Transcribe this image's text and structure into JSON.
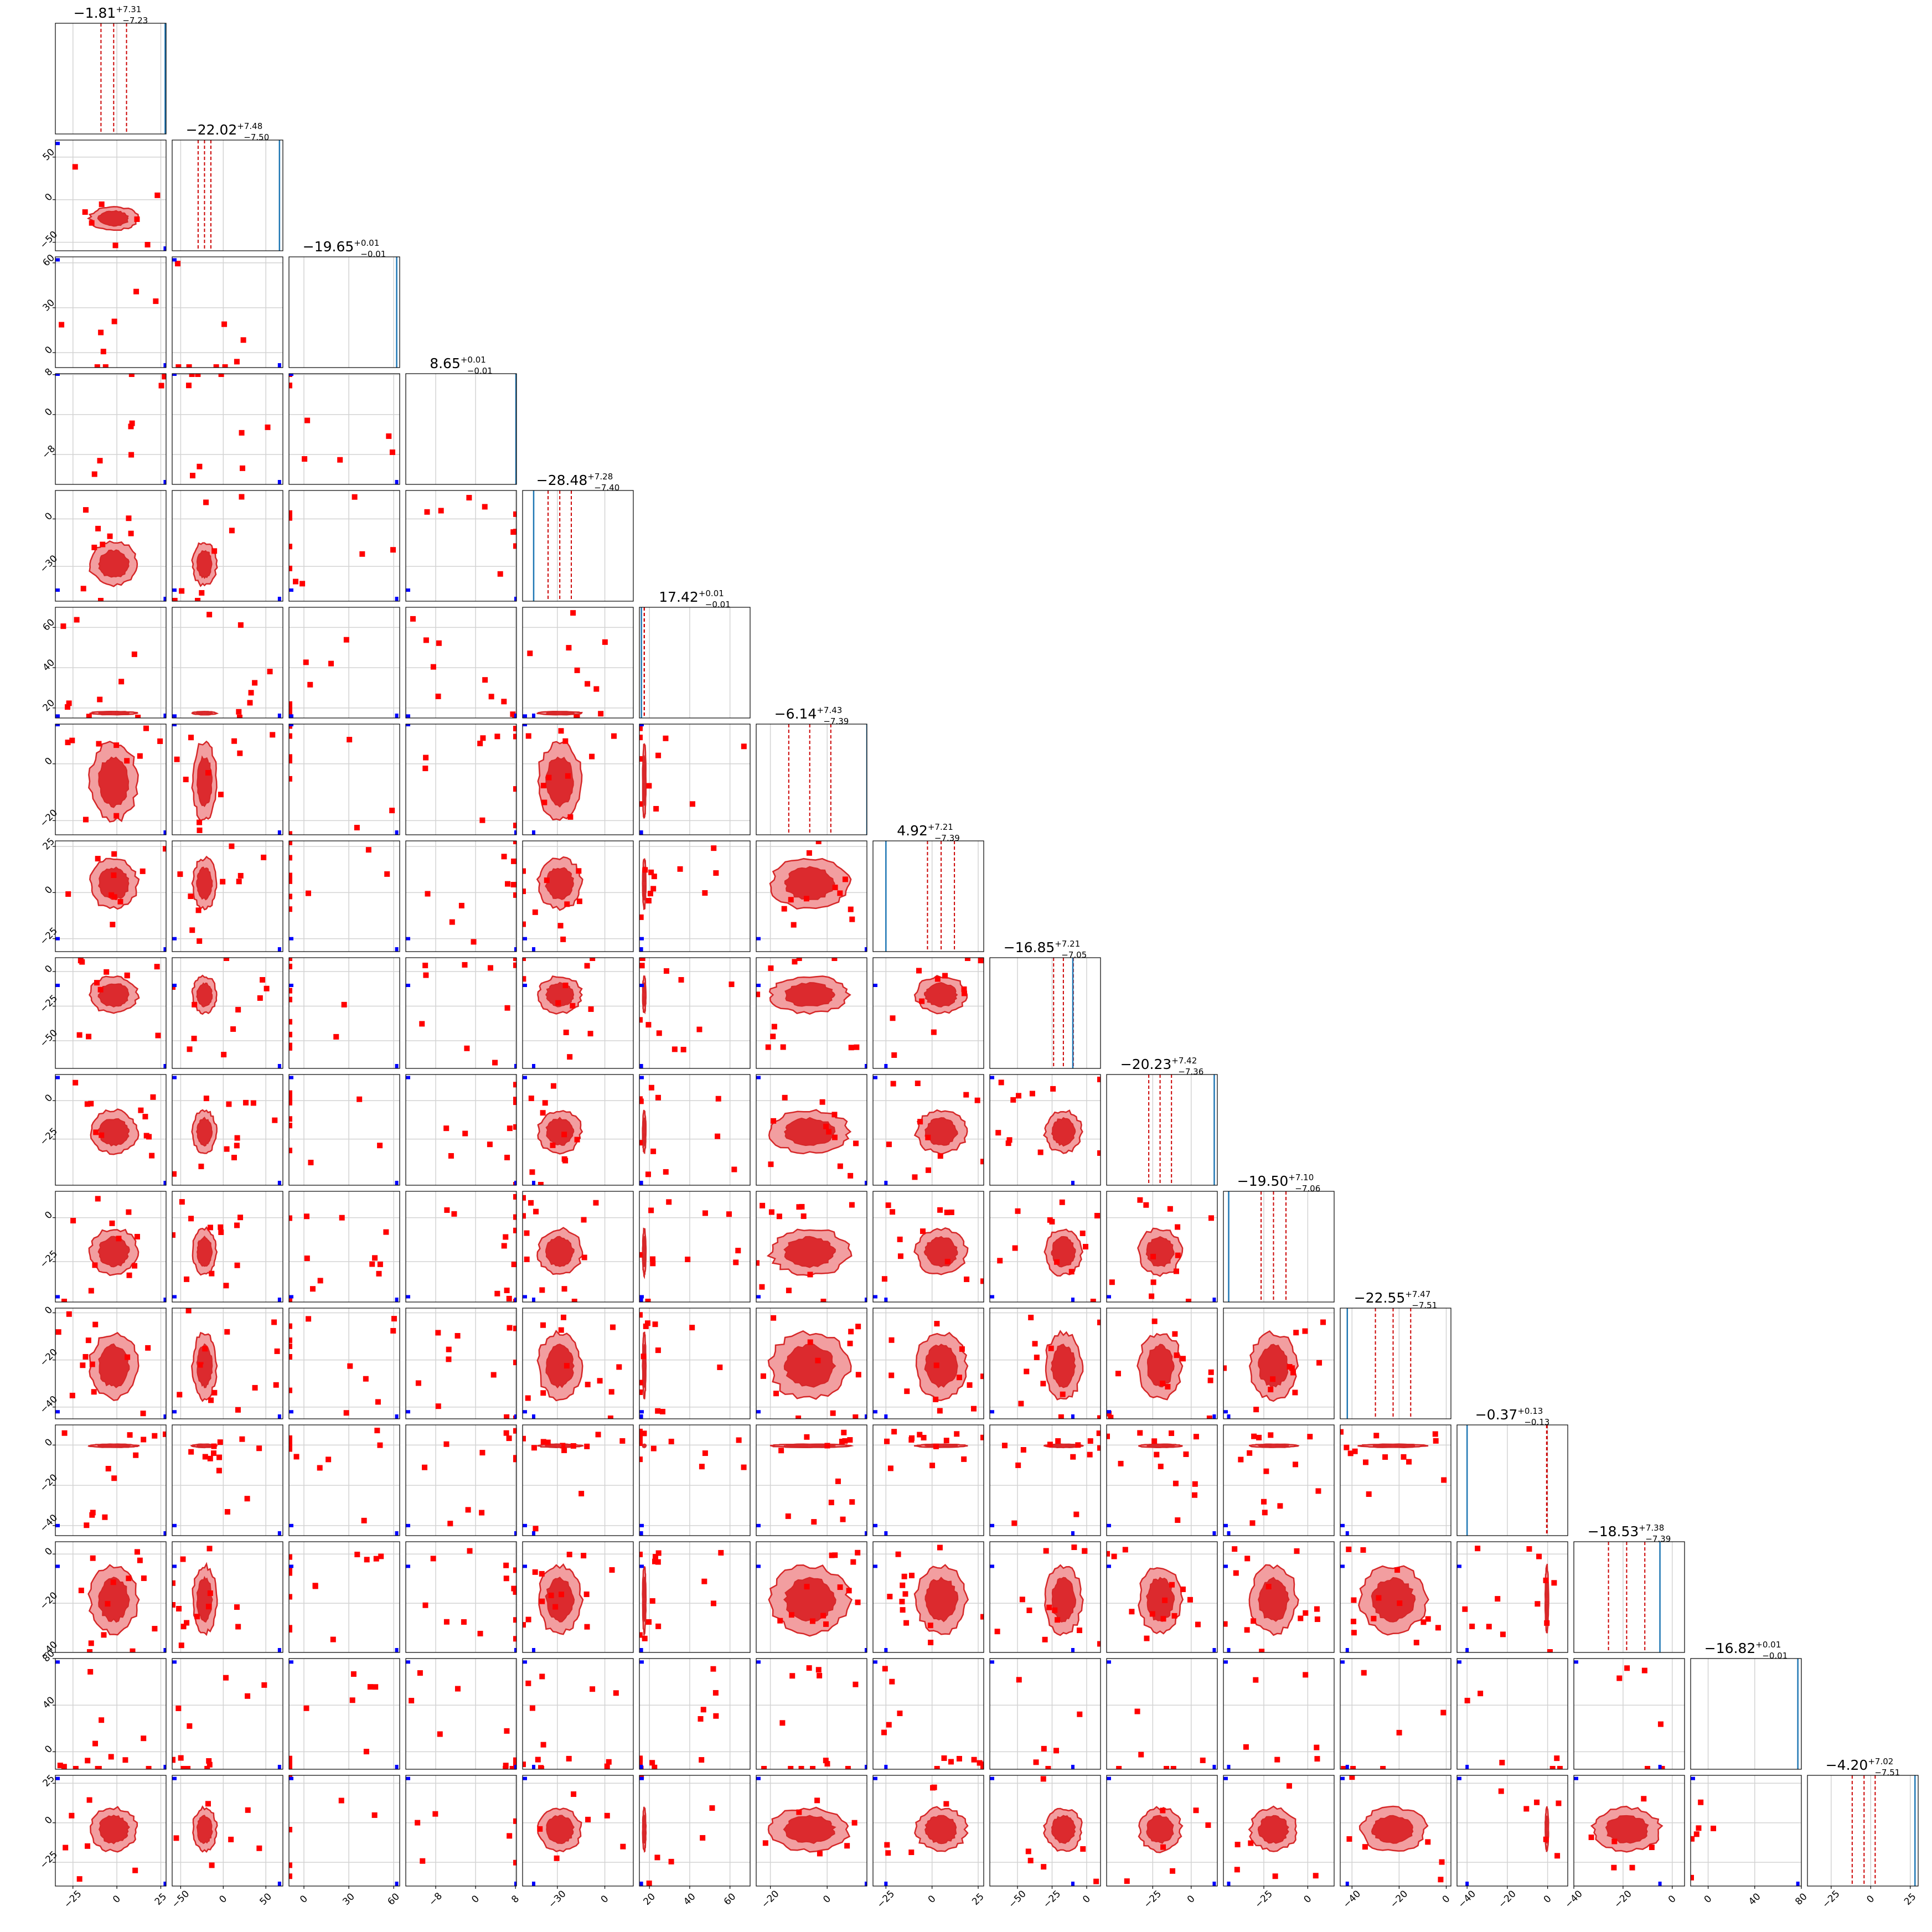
{
  "chart_data": {
    "type": "corner",
    "n_params": 16,
    "panel_titles": [
      {
        "median": "−1.81",
        "plus": "+7.31",
        "minus": "−7.23"
      },
      {
        "median": "−22.02",
        "plus": "+7.48",
        "minus": "−7.50"
      },
      {
        "median": "−19.65",
        "plus": "+0.01",
        "minus": "−0.01"
      },
      {
        "median": "8.65",
        "plus": "+0.01",
        "minus": "−0.01"
      },
      {
        "median": "−28.48",
        "plus": "+7.28",
        "minus": "−7.40"
      },
      {
        "median": "17.42",
        "plus": "+0.01",
        "minus": "−0.01"
      },
      {
        "median": "−6.14",
        "plus": "+7.43",
        "minus": "−7.39"
      },
      {
        "median": "4.92",
        "plus": "+7.21",
        "minus": "−7.39"
      },
      {
        "median": "−16.85",
        "plus": "+7.21",
        "minus": "−7.05"
      },
      {
        "median": "−20.23",
        "plus": "+7.42",
        "minus": "−7.36"
      },
      {
        "median": "−19.50",
        "plus": "+7.10",
        "minus": "−7.06"
      },
      {
        "median": "−22.55",
        "plus": "+7.47",
        "minus": "−7.51"
      },
      {
        "median": "−0.37",
        "plus": "+0.13",
        "minus": "−0.13"
      },
      {
        "median": "−18.53",
        "plus": "+7.38",
        "minus": "−7.39"
      },
      {
        "median": "−16.82",
        "plus": "+0.01",
        "minus": "−0.01"
      },
      {
        "median": "−4.20",
        "plus": "+7.02",
        "minus": "−7.51"
      }
    ],
    "ranges": [
      [
        -35,
        28
      ],
      [
        -60,
        70
      ],
      [
        -10,
        64
      ],
      [
        -14,
        8.2
      ],
      [
        -52,
        18
      ],
      [
        15,
        70
      ],
      [
        -25,
        14
      ],
      [
        -32,
        28
      ],
      [
        -70,
        10
      ],
      [
        -55,
        17
      ],
      [
        -48,
        15
      ],
      [
        -45,
        2
      ],
      [
        -45,
        10
      ],
      [
        -40,
        5
      ],
      [
        -15,
        80
      ],
      [
        -40,
        30
      ]
    ],
    "ticks": [
      [
        -25,
        0,
        25
      ],
      [
        -50,
        0,
        50
      ],
      [
        0,
        30,
        60
      ],
      [
        -8,
        0,
        8
      ],
      [
        -30,
        0
      ],
      [
        20,
        40,
        60
      ],
      [
        -20,
        0
      ],
      [
        -25,
        0,
        25
      ],
      [
        -50,
        -25,
        0
      ],
      [
        -25,
        0
      ],
      [
        -25,
        0
      ],
      [
        -40,
        -20,
        0
      ],
      [
        -40,
        -20,
        0
      ],
      [
        -40,
        -20,
        0
      ],
      [
        0,
        40,
        80
      ],
      [
        -25,
        0,
        25
      ]
    ],
    "ytick_labels": [
      [],
      [
        "−50",
        "0",
        "50"
      ],
      [
        "0",
        "30",
        "60"
      ],
      [
        "−8",
        "0",
        "8"
      ],
      [
        "−30",
        "0"
      ],
      [
        "20",
        "40",
        "60"
      ],
      [
        "−20",
        "0"
      ],
      [
        "−25",
        "0",
        "25"
      ],
      [
        "−50",
        "−25",
        "0"
      ],
      [
        "−25",
        "0"
      ],
      [
        "−25",
        "0"
      ],
      [
        "−40",
        "−20",
        "0"
      ],
      [
        "−40",
        "−20",
        "0"
      ],
      [
        "−40",
        "−20",
        "0"
      ],
      [
        "0",
        "40",
        "80"
      ],
      [
        "−25",
        "0",
        "25"
      ]
    ],
    "xtick_labels": [
      [
        "−25",
        "0",
        "25"
      ],
      [
        "−50",
        "0",
        "50"
      ],
      [
        "0",
        "30",
        "60"
      ],
      [
        "−8",
        "0",
        "8"
      ],
      [
        "−30",
        "0"
      ],
      [
        "20",
        "40",
        "60"
      ],
      [
        "−20",
        "0"
      ],
      [
        "−25",
        "0",
        "25"
      ],
      [
        "−50",
        "−25",
        "0"
      ],
      [
        "−25",
        "0"
      ],
      [
        "−25",
        "0"
      ],
      [
        "−40",
        "−20",
        "0"
      ],
      [
        "−40",
        "−20",
        "0"
      ],
      [
        "−40",
        "−20",
        "0"
      ],
      [
        "0",
        "40",
        "80"
      ],
      [
        "−25",
        "0",
        "25"
      ]
    ],
    "medians": [
      -1.81,
      -22.02,
      -19.65,
      8.65,
      -28.48,
      17.42,
      -6.14,
      4.92,
      -16.85,
      -20.23,
      -19.5,
      -22.55,
      -0.37,
      -18.53,
      -16.82,
      -4.2
    ],
    "sigma_plus": [
      7.31,
      7.48,
      0.01,
      0.01,
      7.28,
      0.01,
      7.43,
      7.21,
      7.21,
      7.42,
      7.1,
      7.47,
      0.13,
      7.38,
      0.01,
      7.02
    ],
    "sigma_minus": [
      7.23,
      7.5,
      0.01,
      0.01,
      7.4,
      0.01,
      7.39,
      7.39,
      7.05,
      7.36,
      7.06,
      7.51,
      0.13,
      7.39,
      0.01,
      7.51
    ],
    "blue_marker_values": [
      27.5,
      66,
      62,
      8.1,
      -45,
      16,
      14,
      -25,
      -10,
      15,
      -45,
      -42,
      -40,
      -5,
      77,
      28
    ],
    "show_contours": true,
    "show_outlier_points": true,
    "grid": true,
    "colors": {
      "contours": "#d62728",
      "fill_outer": "#f29ea0",
      "fill_inner": "#dc2a2e",
      "quantile_lines": "#cc0000",
      "truth": "#1f77b4",
      "outliers": "#ff0000",
      "truth_marker": "#0000ff",
      "grid": "#d3d3d3"
    }
  }
}
